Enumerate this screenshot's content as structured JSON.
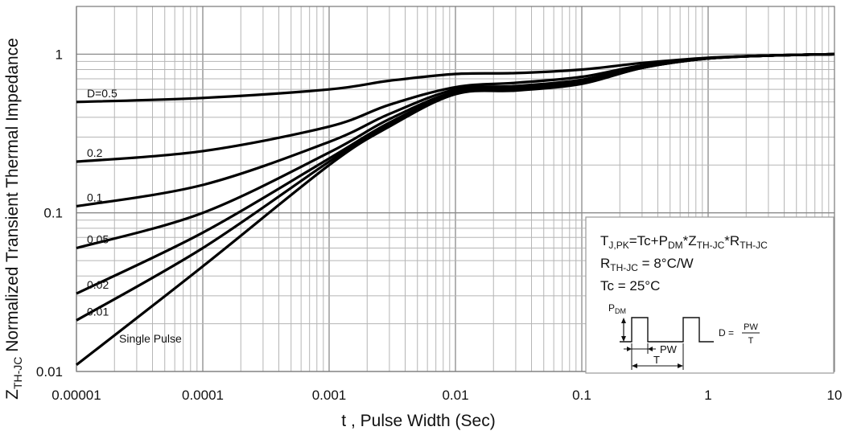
{
  "chart_data": {
    "type": "line",
    "title": "",
    "xlabel": "t , Pulse Width (Sec)",
    "ylabel_main": "Z",
    "ylabel_sub": "TH-JC",
    "ylabel_rest": " Normalized Transient Thermal Impedance",
    "xscale": "log",
    "yscale": "log",
    "xlim": [
      1e-05,
      10
    ],
    "ylim": [
      0.01,
      2
    ],
    "grid": true,
    "x_ticks": [
      "0.00001",
      "0.0001",
      "0.001",
      "0.01",
      "0.1",
      "1",
      "10"
    ],
    "y_ticks": [
      "0.01",
      "0.1",
      "1"
    ],
    "x": [
      1e-05,
      0.0001,
      0.001,
      0.003,
      0.01,
      0.03,
      0.1,
      0.3,
      1,
      3,
      10
    ],
    "series": [
      {
        "name": "D=0.5",
        "values": [
          0.5,
          0.53,
          0.6,
          0.68,
          0.75,
          0.76,
          0.8,
          0.88,
          0.95,
          0.98,
          1.0
        ]
      },
      {
        "name": "0.2",
        "values": [
          0.21,
          0.245,
          0.35,
          0.48,
          0.62,
          0.66,
          0.72,
          0.85,
          0.94,
          0.98,
          1.0
        ]
      },
      {
        "name": "0.1",
        "values": [
          0.11,
          0.15,
          0.28,
          0.42,
          0.6,
          0.63,
          0.69,
          0.84,
          0.94,
          0.98,
          1.0
        ]
      },
      {
        "name": "0.05",
        "values": [
          0.06,
          0.1,
          0.24,
          0.39,
          0.58,
          0.61,
          0.67,
          0.83,
          0.94,
          0.98,
          1.0
        ]
      },
      {
        "name": "0.02",
        "values": [
          0.031,
          0.075,
          0.22,
          0.37,
          0.57,
          0.6,
          0.66,
          0.82,
          0.94,
          0.98,
          1.0
        ]
      },
      {
        "name": "0.01",
        "values": [
          0.021,
          0.06,
          0.21,
          0.36,
          0.565,
          0.595,
          0.655,
          0.82,
          0.94,
          0.98,
          1.0
        ]
      },
      {
        "name": "Single Pulse",
        "values": [
          0.011,
          0.046,
          0.2,
          0.35,
          0.56,
          0.59,
          0.65,
          0.82,
          0.94,
          0.98,
          1.0
        ]
      }
    ],
    "annotation": {
      "line1": {
        "a": "T",
        "a_sub": "J,PK",
        "b": "=Tc+P",
        "b_sub": "DM",
        "c": "*Z",
        "c_sub": "TH-JC",
        "d": "*R",
        "d_sub": "TH-JC"
      },
      "line2": {
        "a": "R",
        "a_sub": "TH-JC",
        "b": " = 8°C/W"
      },
      "line3": "Tc = 25°C",
      "pdm": "P",
      "pdm_sub": "DM",
      "pw": "PW",
      "t": "T",
      "d_eq": "D =",
      "frac_num": "PW",
      "frac_den": "T"
    }
  }
}
